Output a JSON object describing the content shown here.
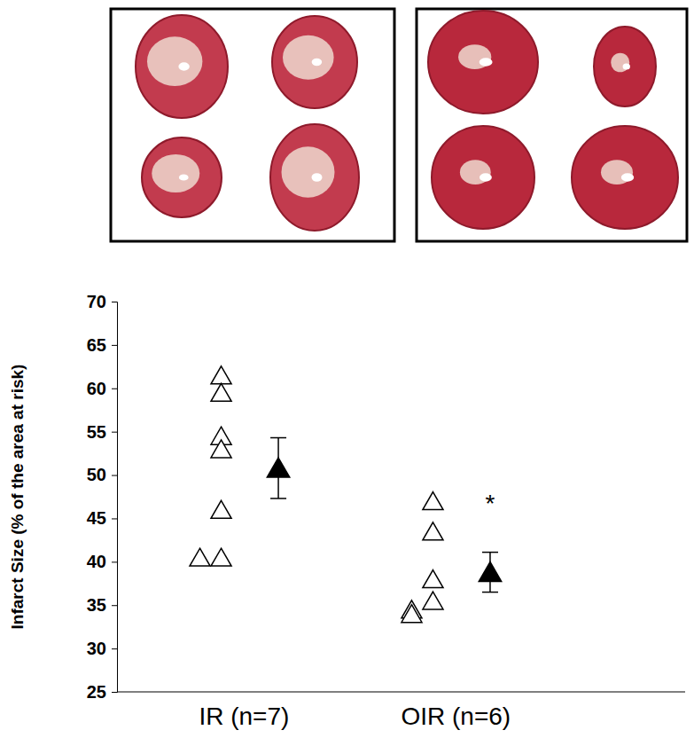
{
  "chart_data": {
    "type": "scatter",
    "y_label": "Infarct Size (% of the area at risk)",
    "categories": [
      "IR (n=7)",
      "OIR (n=6)"
    ],
    "points": [
      [
        61.5,
        59.5,
        54.5,
        53,
        46,
        40.5,
        40.5
      ],
      [
        47,
        43.5,
        38,
        35.5,
        34.5,
        34
      ]
    ],
    "means": [
      50.8,
      38.8
    ],
    "errors": [
      3.5,
      2.3
    ],
    "marker": "triangle-open",
    "mean_marker": "triangle",
    "color": "#000000",
    "ylim": [
      25,
      70
    ],
    "yticks": [
      25,
      30,
      35,
      40,
      45,
      50,
      55,
      60,
      65,
      70
    ],
    "annotations": [
      {
        "text": "*",
        "category": 1
      }
    ]
  }
}
